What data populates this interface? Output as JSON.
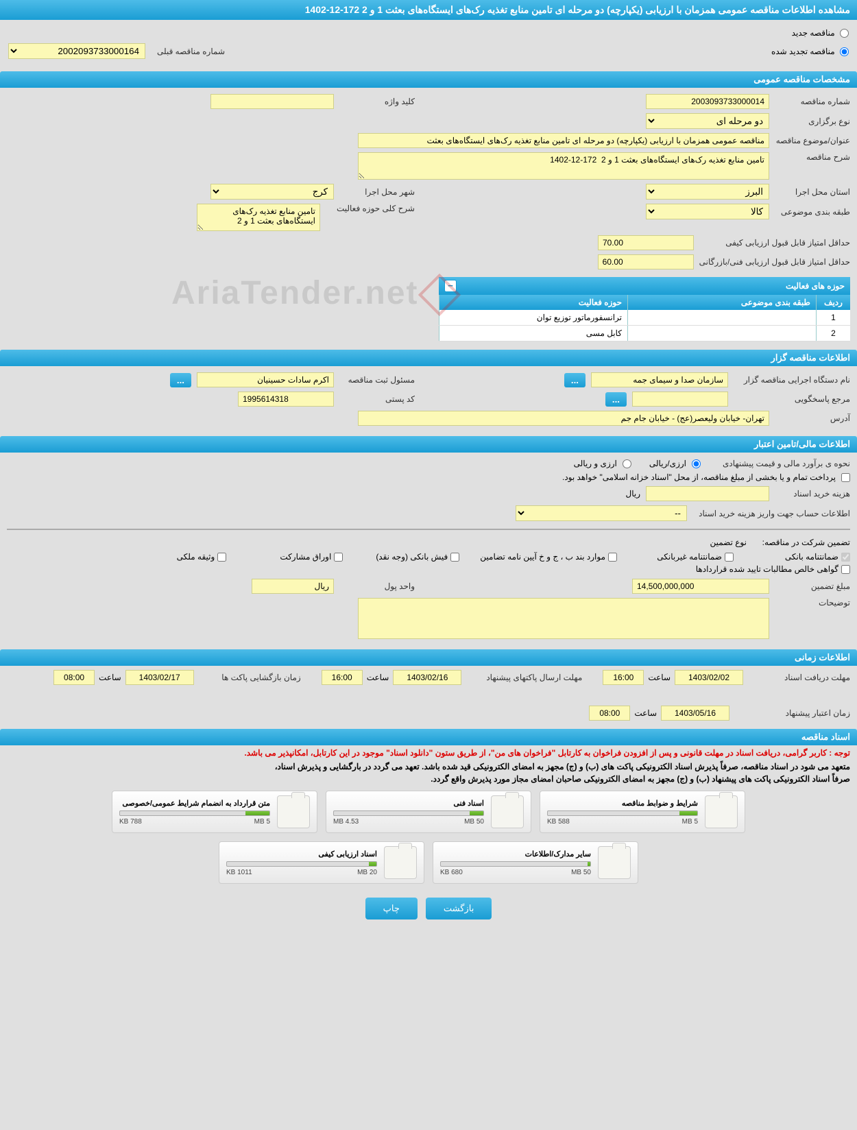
{
  "colors": {
    "header_grad_top": "#4dbce8",
    "header_grad_bot": "#1a9dd4",
    "yellow": "#fcf9b6",
    "bg": "#e0e0e0",
    "red": "#d00"
  },
  "page_title": "مشاهده اطلاعات مناقصه عمومی همزمان با ارزیابی (یکپارچه) دو مرحله ای تامین منابع تغذیه رک‌های ایستگاه‌های بعثت 1 و 2 172-12-1402",
  "tender_status": {
    "new_label": "مناقصه جدید",
    "renewed_label": "مناقصه تجدید شده",
    "selected": "renewed"
  },
  "prev_tender": {
    "label": "شماره مناقصه قبلی",
    "value": "2002093733000164"
  },
  "sections": {
    "general": {
      "title": "مشخصات مناقصه عمومی"
    },
    "organizer": {
      "title": "اطلاعات مناقصه گزار"
    },
    "financial": {
      "title": "اطلاعات مالی/تامین اعتبار"
    },
    "timing": {
      "title": "اطلاعات زمانی"
    },
    "documents": {
      "title": "اسناد مناقصه"
    }
  },
  "general": {
    "tender_number": {
      "label": "شماره مناقصه",
      "value": "2003093733000014"
    },
    "keyword": {
      "label": "کلید واژه",
      "value": ""
    },
    "holding_type": {
      "label": "نوع برگزاری",
      "value": "دو مرحله ای"
    },
    "subject": {
      "label": "عنوان/موضوع مناقصه",
      "value": "مناقصه عمومی همزمان با ارزیابی (یکپارچه) دو مرحله ای تامین منابع تغذیه رک‌های ایستگاه‌های بعثت"
    },
    "description": {
      "label": "شرح مناقصه",
      "value": "تامین منابع تغذیه رک‌های ایستگاه‌های بعثت 1 و 2  172-12-1402"
    },
    "province": {
      "label": "استان محل اجرا",
      "value": "البرز"
    },
    "city": {
      "label": "شهر محل اجرا",
      "value": "کرج"
    },
    "category": {
      "label": "طبقه بندی موضوعی",
      "value": "کالا"
    },
    "activity_desc": {
      "label": "شرح کلی حوزه فعالیت",
      "value": "تامین منابع تغذیه رک‌های ایستگاه‌های بعثت 1 و 2"
    },
    "min_quality": {
      "label": "حداقل امتیاز قابل قبول ارزیابی کیفی",
      "value": "70.00"
    },
    "min_tech": {
      "label": "حداقل امتیاز قابل قبول ارزیابی فنی/بازرگانی",
      "value": "60.00"
    }
  },
  "activity_table": {
    "title": "حوزه های فعالیت",
    "headers": {
      "idx": "ردیف",
      "category": "طبقه بندی موضوعی",
      "field": "حوزه فعالیت"
    },
    "rows": [
      {
        "idx": "1",
        "category": "",
        "field": "ترانسفورماتور توزیع توان"
      },
      {
        "idx": "2",
        "category": "",
        "field": "کابل مسی"
      }
    ]
  },
  "organizer": {
    "org_name": {
      "label": "نام دستگاه اجرایی مناقصه گزار",
      "value": "سازمان صدا و سیمای جمه"
    },
    "registrant": {
      "label": "مسئول ثبت مناقصه",
      "value": "اکرم سادات حسینیان"
    },
    "responder": {
      "label": "مرجع پاسخگویی",
      "value": ""
    },
    "postal": {
      "label": "کد پستی",
      "value": "1995614318"
    },
    "address": {
      "label": "آدرس",
      "value": "تهران- خیابان ولیعصر(عج) - خیابان جام جم"
    }
  },
  "financial": {
    "estimate_method": {
      "label": "نحوه ی برآورد مالی و قیمت پیشنهادی",
      "opt1": "ارزی/ریالی",
      "opt2": "ارزی و ریالی",
      "selected": "opt1"
    },
    "note": "پرداخت تمام و یا بخشی از مبلغ مناقصه، از محل \"اسناد خزانه اسلامی\" خواهد بود.",
    "purchase_cost": {
      "label": "هزینه خرید اسناد",
      "unit": "ریال",
      "value": ""
    },
    "account_info": {
      "label": "اطلاعات حساب جهت واریز هزینه خرید اسناد",
      "value": "--"
    },
    "guarantee_section_label": "تضمین شرکت در مناقصه:",
    "guarantee_type_label": "نوع تضمین",
    "guarantee_types": [
      {
        "label": "ضمانتنامه بانکی",
        "checked": true,
        "disabled": true
      },
      {
        "label": "ضمانتنامه غیربانکی",
        "checked": false
      },
      {
        "label": "موارد بند ب ، ج و خ آیین نامه تضامین",
        "checked": false
      },
      {
        "label": "فیش بانکی (وجه نقد)",
        "checked": false
      },
      {
        "label": "اوراق مشارکت",
        "checked": false
      },
      {
        "label": "وثیقه ملکی",
        "checked": false
      },
      {
        "label": "گواهی خالص مطالبات تایید شده قراردادها",
        "checked": false
      }
    ],
    "guarantee_amount": {
      "label": "مبلغ تضمین",
      "value": "14,500,000,000"
    },
    "money_unit": {
      "label": "واحد پول",
      "value": "ریال"
    },
    "notes": {
      "label": "توضیحات",
      "value": ""
    }
  },
  "timing": {
    "receive_deadline": {
      "label": "مهلت دریافت اسناد",
      "date": "1403/02/02",
      "time_label": "ساعت",
      "time": "16:00"
    },
    "send_deadline": {
      "label": "مهلت ارسال پاکتهای پیشنهاد",
      "date": "1403/02/16",
      "time_label": "ساعت",
      "time": "16:00"
    },
    "opening": {
      "label": "زمان بازگشایی پاکت ها",
      "date": "1403/02/17",
      "time_label": "ساعت",
      "time": "08:00"
    },
    "validity": {
      "label": "زمان اعتبار پیشنهاد",
      "date": "1403/05/16",
      "time_label": "ساعت",
      "time": "08:00"
    }
  },
  "doc_notice_red": "توجه : کاربر گرامی، دریافت اسناد در مهلت قانونی و پس از افزودن فراخوان به کارتابل \"فراخوان های من\"، از طریق ستون \"دانلود اسناد\" موجود در این کارتابل، امکانپذیر می باشد.",
  "doc_notice_1": "متعهد می شود در اسناد مناقصه، صرفاً پذیرش اسناد الکترونیکی پاکت های (ب) و (ج) مجهز به امضای الکترونیکی قید شده باشد. تعهد می گردد در بارگشایی و پذیرش اسناد،",
  "doc_notice_2": "صرفاً اسناد الکترونیکی پاکت های پیشنهاد (ب) و (ج) مجهز به امضای الکترونیکی صاحبان امضای مجاز مورد پذیرش واقع گردد.",
  "documents": [
    {
      "title": "شرایط و ضوابط مناقصه",
      "used": "588 KB",
      "total": "5 MB",
      "pct": 12
    },
    {
      "title": "اسناد فنی",
      "used": "4.53 MB",
      "total": "50 MB",
      "pct": 9
    },
    {
      "title": "متن قرارداد به انضمام شرایط عمومی/خصوصی",
      "used": "788 KB",
      "total": "5 MB",
      "pct": 16
    },
    {
      "title": "سایر مدارک/اطلاعات",
      "used": "680 KB",
      "total": "50 MB",
      "pct": 2
    },
    {
      "title": "اسناد ارزیابی کیفی",
      "used": "1011 KB",
      "total": "20 MB",
      "pct": 5
    }
  ],
  "buttons": {
    "back": "بازگشت",
    "print": "چاپ"
  },
  "watermark": "AriaTender.net"
}
